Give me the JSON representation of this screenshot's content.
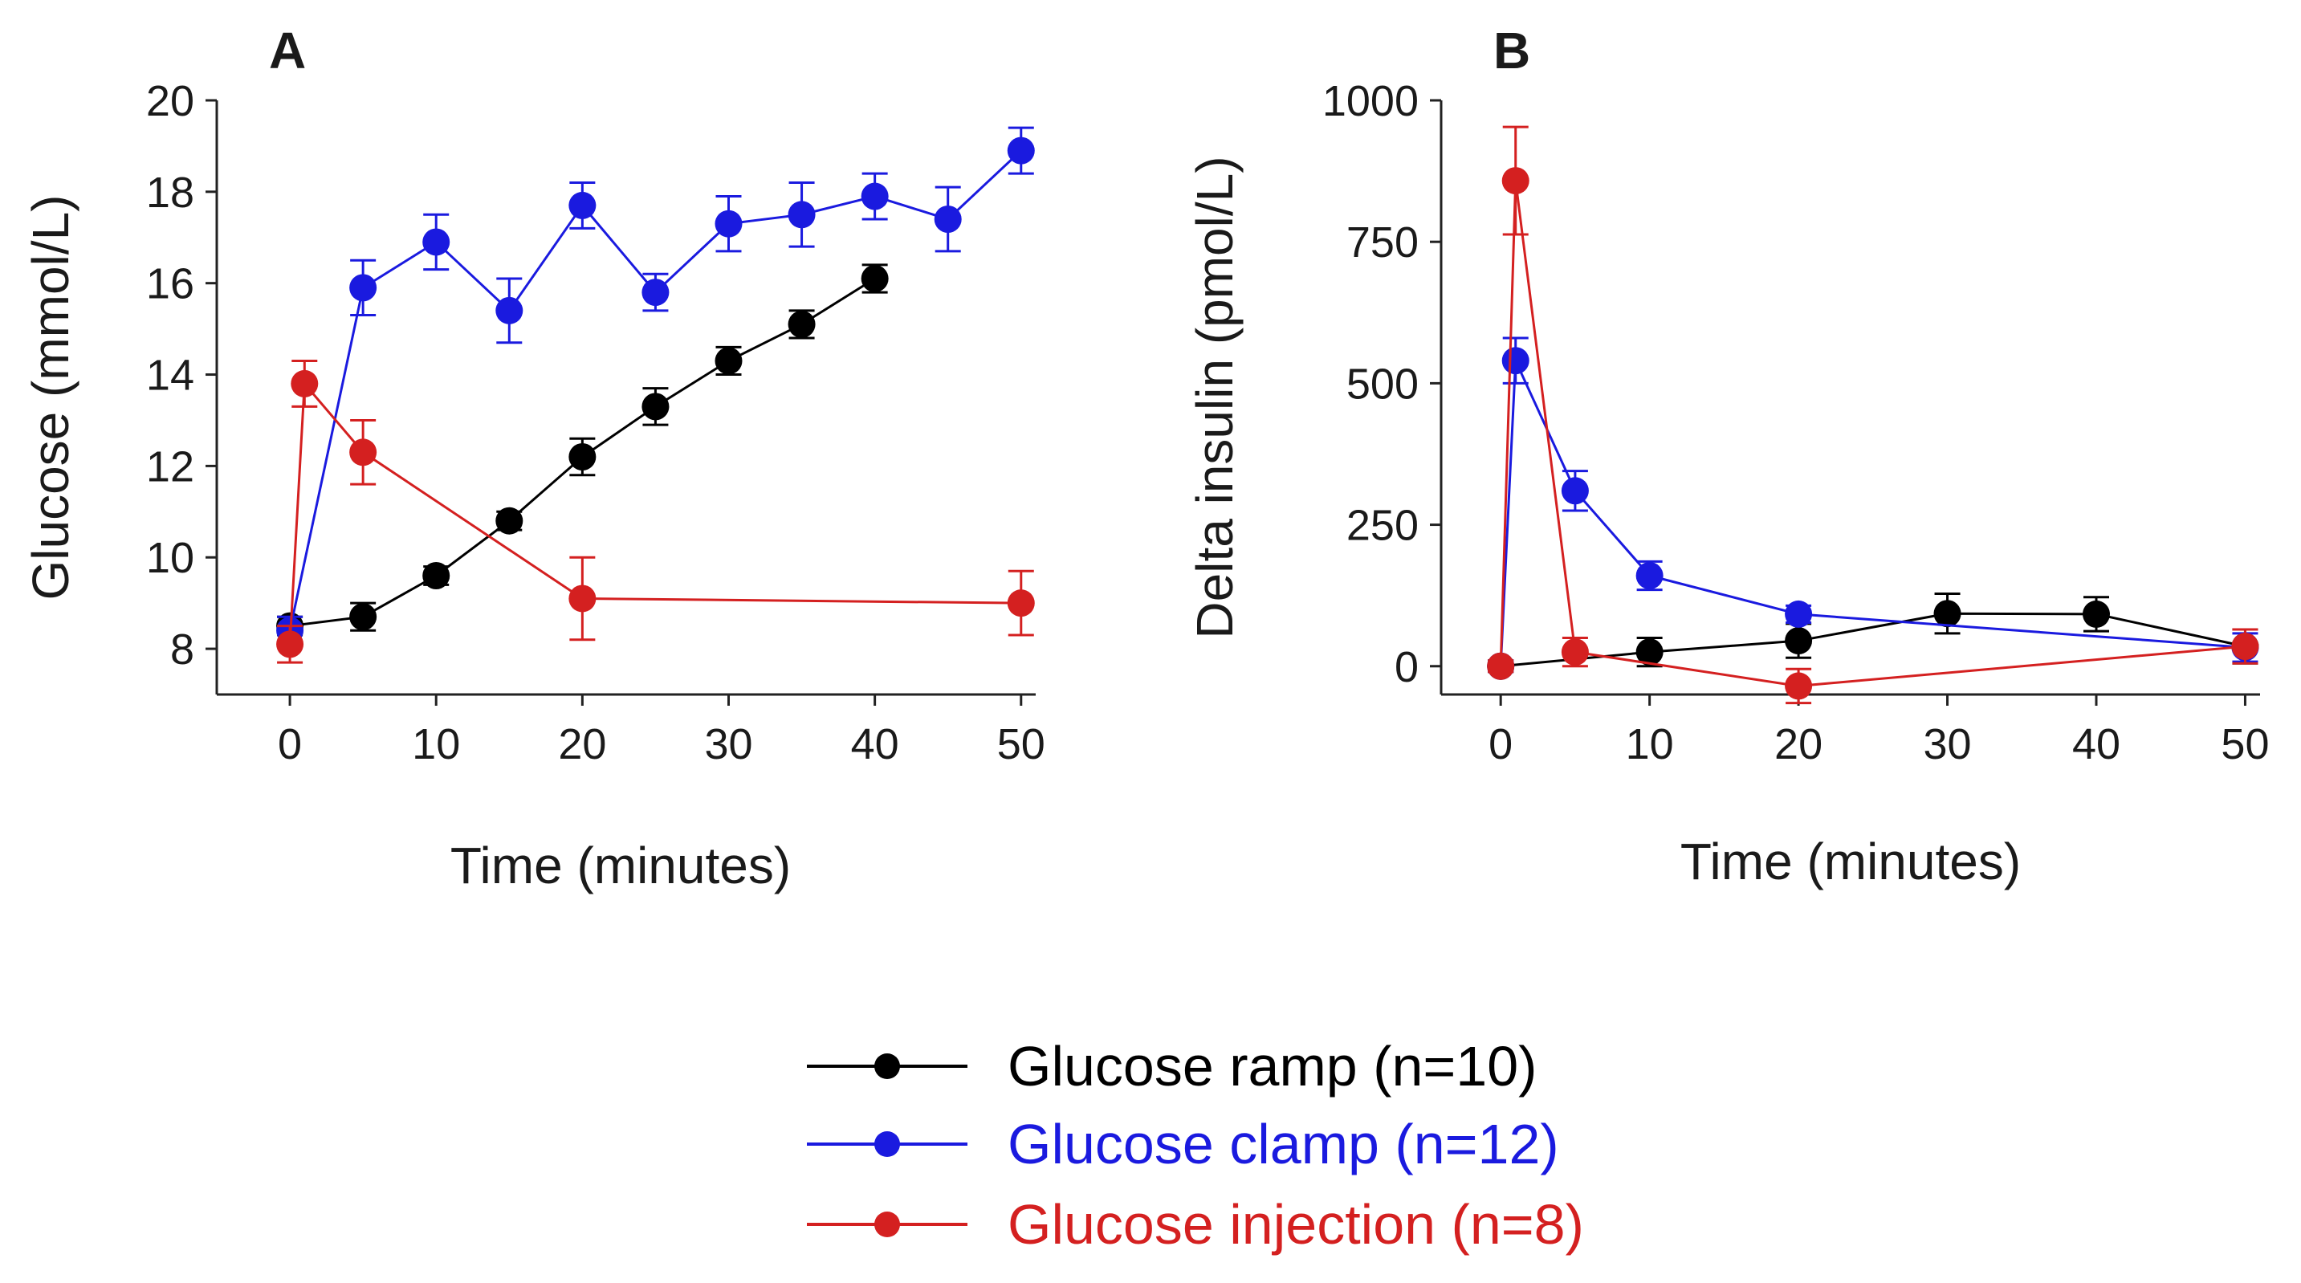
{
  "chart_data": [
    {
      "type": "line",
      "panel_label": "A",
      "xlabel": "Time (minutes)",
      "ylabel": "Glucose (mmol/L)",
      "xlim": [
        -5,
        51
      ],
      "ylim": [
        7,
        20
      ],
      "xticks": [
        "0",
        "10",
        "20",
        "30",
        "40",
        "50"
      ],
      "yticks": [
        "8",
        "10",
        "12",
        "14",
        "16",
        "18",
        "20"
      ],
      "series": [
        {
          "name": "Glucose ramp (n=10)",
          "color": "#000000",
          "x": [
            0,
            5,
            10,
            15,
            20,
            25,
            30,
            35,
            40
          ],
          "y": [
            8.5,
            8.7,
            9.6,
            10.8,
            12.2,
            13.3,
            14.3,
            15.1,
            16.1
          ],
          "err": [
            0.2,
            0.3,
            0.2,
            0.2,
            0.4,
            0.4,
            0.3,
            0.3,
            0.3
          ]
        },
        {
          "name": "Glucose clamp (n=12)",
          "color": "#1a1adf",
          "x": [
            0,
            5,
            10,
            15,
            20,
            25,
            30,
            35,
            40,
            45,
            50
          ],
          "y": [
            8.4,
            15.9,
            16.9,
            15.4,
            17.7,
            15.8,
            17.3,
            17.5,
            17.9,
            17.4,
            18.9
          ],
          "err": [
            0.3,
            0.6,
            0.6,
            0.7,
            0.5,
            0.4,
            0.6,
            0.7,
            0.5,
            0.7,
            0.5
          ]
        },
        {
          "name": "Glucose injection (n=8)",
          "color": "#d42020",
          "x": [
            0,
            1,
            5,
            20,
            50
          ],
          "y": [
            8.1,
            13.8,
            12.3,
            9.1,
            9.0
          ],
          "err": [
            0.4,
            0.5,
            0.7,
            0.9,
            0.7
          ]
        }
      ]
    },
    {
      "type": "line",
      "panel_label": "B",
      "xlabel": "Time (minutes)",
      "ylabel": "Delta insulin (pmol/L)",
      "xlim": [
        -4,
        51
      ],
      "ylim": [
        -50,
        1000
      ],
      "xticks": [
        "0",
        "10",
        "20",
        "30",
        "40",
        "50"
      ],
      "yticks": [
        "0",
        "250",
        "500",
        "750",
        "1000"
      ],
      "series": [
        {
          "name": "Glucose ramp (n=10)",
          "color": "#000000",
          "x": [
            0,
            10,
            20,
            30,
            40,
            50
          ],
          "y": [
            0,
            25,
            45,
            93,
            92,
            35
          ],
          "err": [
            10,
            25,
            30,
            35,
            30,
            30
          ]
        },
        {
          "name": "Glucose clamp (n=12)",
          "color": "#1a1adf",
          "x": [
            0,
            1,
            5,
            10,
            20,
            50
          ],
          "y": [
            0,
            540,
            310,
            160,
            92,
            33
          ],
          "err": [
            10,
            40,
            35,
            25,
            15,
            25
          ]
        },
        {
          "name": "Glucose injection (n=8)",
          "color": "#d42020",
          "x": [
            0,
            1,
            5,
            20,
            50
          ],
          "y": [
            0,
            858,
            25,
            -35,
            35
          ],
          "err": [
            10,
            95,
            25,
            30,
            30
          ]
        }
      ]
    }
  ],
  "legend": {
    "placement": "bottom-center",
    "entries": [
      {
        "label": "Glucose ramp (n=10)",
        "color": "#000000"
      },
      {
        "label": "Glucose clamp (n=12)",
        "color": "#1a1adf"
      },
      {
        "label": "Glucose injection (n=8)",
        "color": "#d42020"
      }
    ]
  }
}
